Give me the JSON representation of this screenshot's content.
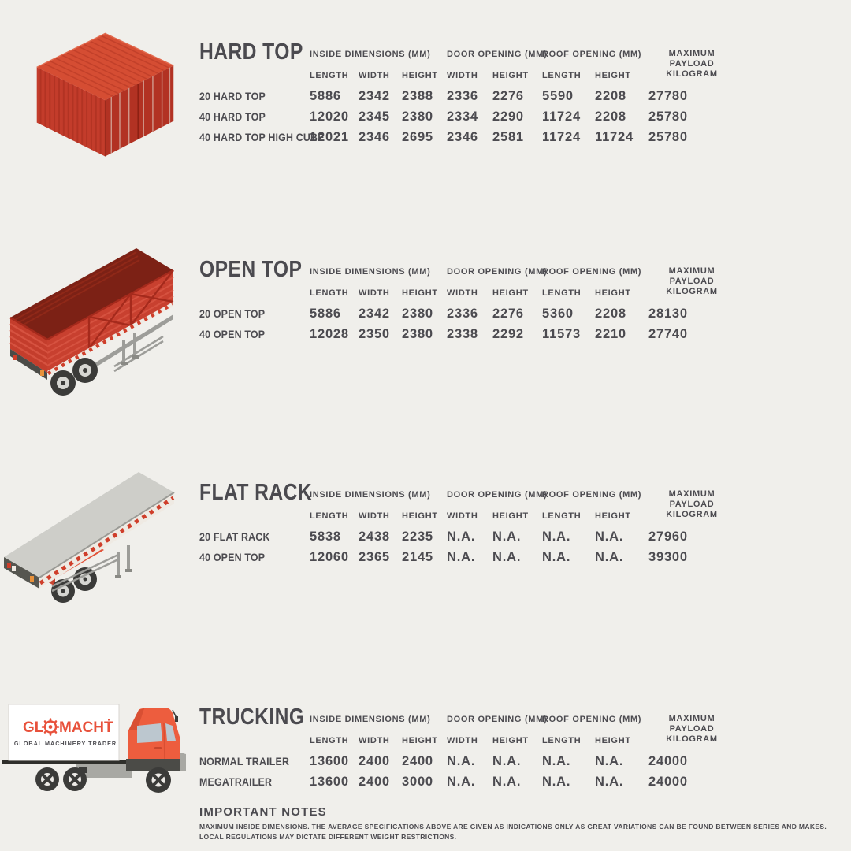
{
  "page": {
    "background": "#f0efeb",
    "text_color": "#4c4b50",
    "container_red": "#c33c2b",
    "cab_orange": "#ed5d3e",
    "logo_red": "#e8513b"
  },
  "columns": {
    "groups": [
      {
        "label": "INSIDE DIMENSIONS (MM)",
        "span": 3,
        "align": "left",
        "rows": 1
      },
      {
        "label": "DOOR OPENING (MM)",
        "span": 2,
        "align": "left",
        "rows": 1
      },
      {
        "label": "ROOF OPENING (MM)",
        "span": 2,
        "align": "left",
        "rows": 1
      },
      {
        "label": "MAXIMUM PAYLOAD\nKILOGRAM",
        "span": 1,
        "align": "center",
        "rows": 2
      }
    ],
    "sub": [
      "LENGTH",
      "WIDTH",
      "HEIGHT",
      "WIDTH",
      "HEIGHT",
      "LENGTH",
      "HEIGHT"
    ]
  },
  "sections": [
    {
      "title": "HARD TOP",
      "illustration": "hard-top-container",
      "rows": [
        {
          "label": "20 HARD TOP",
          "values": [
            "5886",
            "2342",
            "2388",
            "2336",
            "2276",
            "5590",
            "2208",
            "27780"
          ]
        },
        {
          "label": "40 HARD TOP",
          "values": [
            "12020",
            "2345",
            "2380",
            "2334",
            "2290",
            "11724",
            "2208",
            "25780"
          ]
        },
        {
          "label": "40 HARD TOP HIGH CUBE",
          "values": [
            "12021",
            "2346",
            "2695",
            "2346",
            "2581",
            "11724",
            "11724",
            "25780"
          ]
        }
      ]
    },
    {
      "title": "OPEN TOP",
      "illustration": "open-top-trailer",
      "rows": [
        {
          "label": "20 OPEN TOP",
          "values": [
            "5886",
            "2342",
            "2380",
            "2336",
            "2276",
            "5360",
            "2208",
            "28130"
          ]
        },
        {
          "label": "40 OPEN TOP",
          "values": [
            "12028",
            "2350",
            "2380",
            "2338",
            "2292",
            "11573",
            "2210",
            "27740"
          ]
        }
      ]
    },
    {
      "title": "FLAT RACK",
      "illustration": "flat-rack-trailer",
      "rows": [
        {
          "label": "20 FLAT RACK",
          "values": [
            "5838",
            "2438",
            "2235",
            "N.A.",
            "N.A.",
            "N.A.",
            "N.A.",
            "27960"
          ]
        },
        {
          "label": "40 OPEN TOP",
          "values": [
            "12060",
            "2365",
            "2145",
            "N.A.",
            "N.A.",
            "N.A.",
            "N.A.",
            "39300"
          ]
        }
      ]
    },
    {
      "title": "TRUCKING",
      "illustration": "glomacht-truck",
      "rows": [
        {
          "label": "NORMAL TRAILER",
          "values": [
            "13600",
            "2400",
            "2400",
            "N.A.",
            "N.A.",
            "N.A.",
            "N.A.",
            "24000"
          ]
        },
        {
          "label": "MEGATRAILER",
          "values": [
            "13600",
            "2400",
            "3000",
            "N.A.",
            "N.A.",
            "N.A.",
            "N.A.",
            "24000"
          ]
        }
      ]
    }
  ],
  "notes": {
    "title": "IMPORTANT NOTES",
    "lines": [
      "MAXIMUM INSIDE DIMENSIONS. THE AVERAGE SPECIFICATIONS ABOVE ARE GIVEN AS INDICATIONS ONLY AS GREAT VARIATIONS CAN BE FOUND BETWEEN SERIES AND MAKES.",
      "LOCAL REGULATIONS MAY DICTATE DIFFERENT WEIGHT RESTRICTIONS."
    ]
  },
  "truck_logo": {
    "part1": "GL",
    "part2": "MACHT",
    "subtitle": "GLOBAL  MACHINERY  TRADER"
  }
}
